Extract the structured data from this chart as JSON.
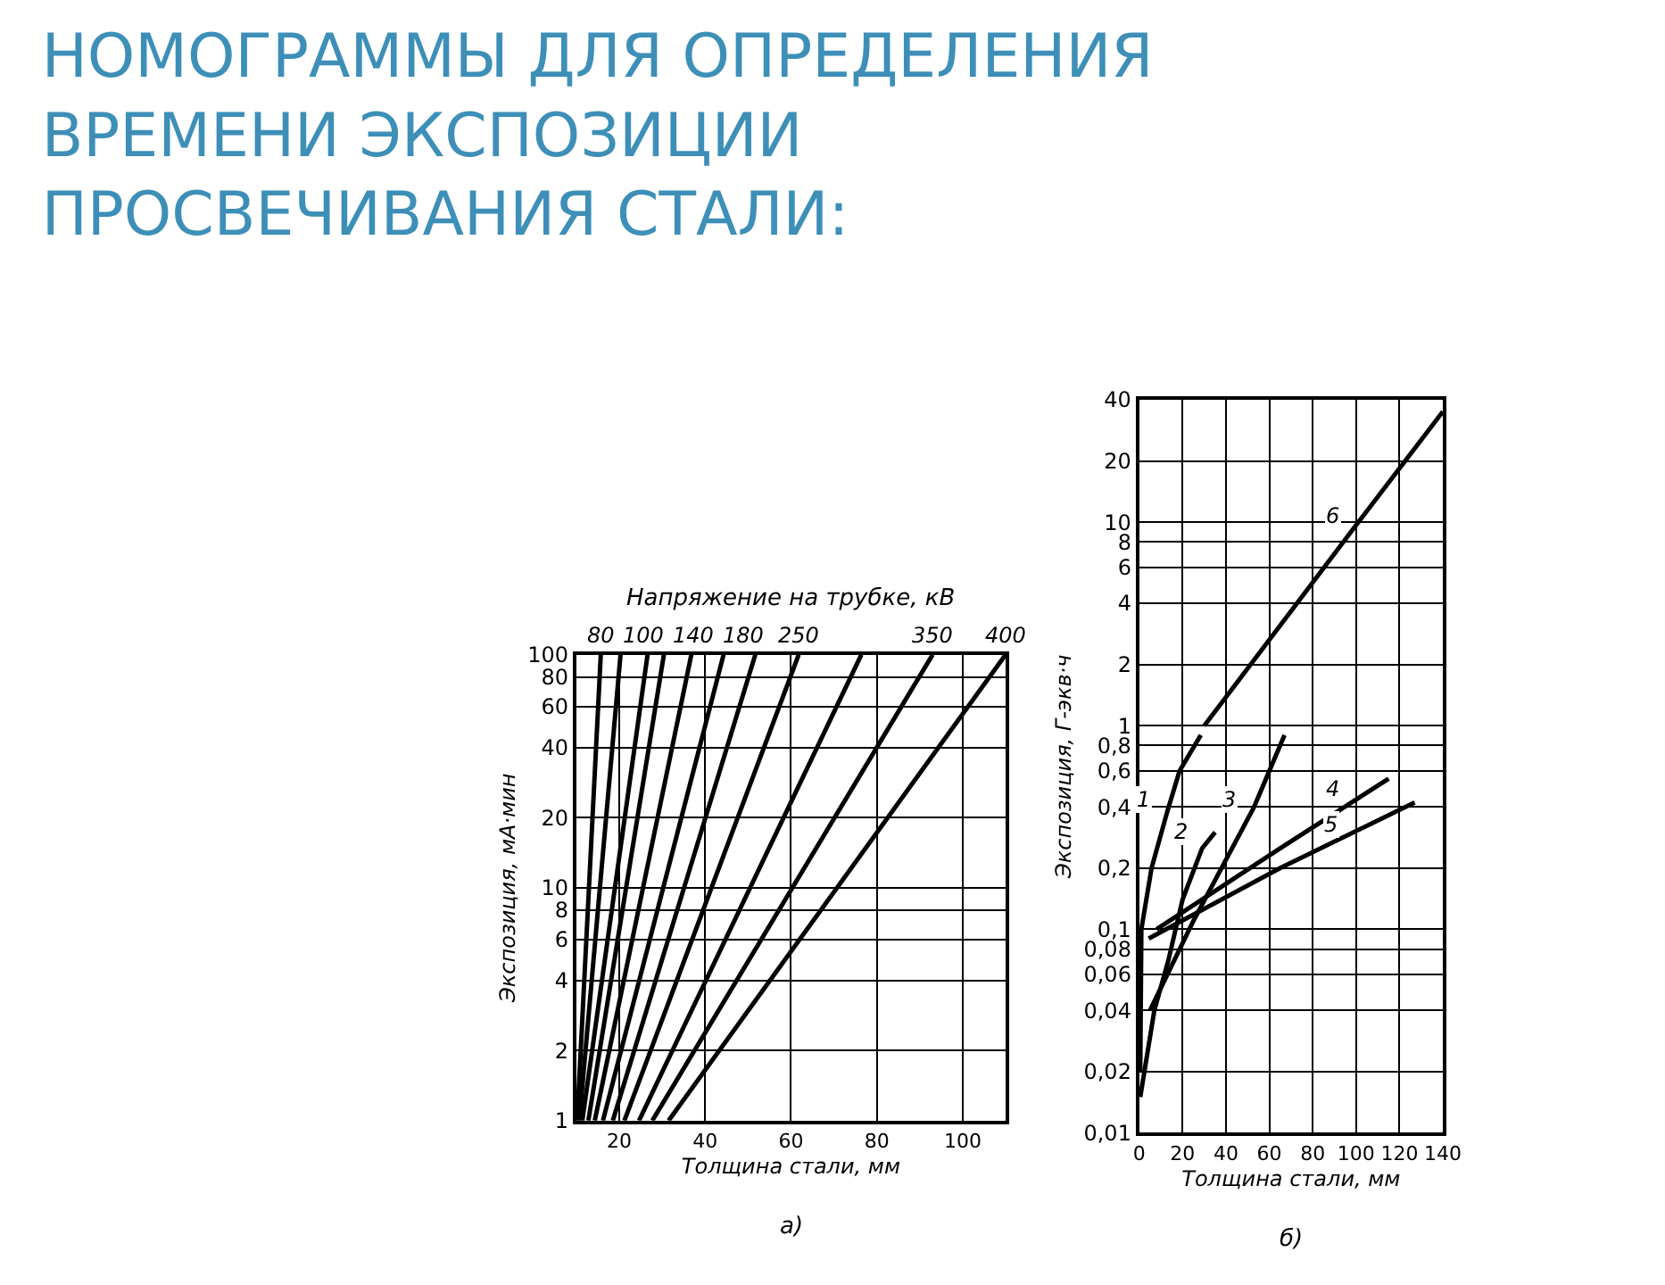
{
  "chart_data": [
    {
      "type": "line",
      "title": "НОМОГРАММЫ ДЛЯ ОПРЕДЕЛЕНИЯ ВРЕМЕНИ ЭКСПОЗИЦИИ ПРОСВЕЧИВАНИЯ СТАЛИ:",
      "subtitle": "Напряжение на трубке, кВ",
      "xlabel": "Толщина стали, мм",
      "ylabel": "Экспозиция, мА·мин",
      "log": "y",
      "grid": true,
      "marker": "none",
      "line_style": "solid",
      "xlim": [
        10,
        110
      ],
      "xticks": [
        20,
        40,
        60,
        80,
        100
      ],
      "ylim": [
        1,
        100
      ],
      "yticks": [
        1,
        2,
        4,
        6,
        8,
        10,
        20,
        40,
        60,
        80,
        100
      ],
      "series": [
        {
          "color": "#000000",
          "x": [
            10.2,
            15.7
          ],
          "values": [
            1,
            100
          ]
        },
        {
          "color": "#000000",
          "x": [
            10.7,
            20.3
          ],
          "values": [
            1,
            100
          ]
        },
        {
          "color": "#000000",
          "x": [
            11.4,
            26.6
          ],
          "values": [
            1,
            100
          ]
        },
        {
          "color": "#000000",
          "x": [
            12.8,
            30.4
          ],
          "values": [
            1,
            100
          ]
        },
        {
          "color": "#000000",
          "x": [
            14.3,
            36.8
          ],
          "values": [
            1,
            100
          ]
        },
        {
          "color": "#000000",
          "x": [
            16.2,
            44.3
          ],
          "values": [
            1,
            100
          ]
        },
        {
          "color": "#000000",
          "x": [
            18.5,
            51.7
          ],
          "values": [
            1,
            100
          ]
        },
        {
          "color": "#000000",
          "x": [
            21.2,
            61.8
          ],
          "values": [
            1,
            100
          ]
        },
        {
          "color": "#000000",
          "x": [
            24.6,
            76.4
          ],
          "values": [
            1,
            100
          ]
        },
        {
          "color": "#000000",
          "x": [
            27.7,
            93
          ],
          "values": [
            1,
            100
          ]
        },
        {
          "color": "#000000",
          "x": [
            31.5,
            110
          ],
          "values": [
            1,
            100
          ]
        }
      ],
      "annotations": [
        {
          "text": "80",
          "x": 15.7,
          "y": 100
        },
        {
          "text": "100",
          "x": 20.3,
          "y": 100
        },
        {
          "text": "140",
          "x": 30.4,
          "y": 100
        },
        {
          "text": "180",
          "x": 44.3,
          "y": 100
        },
        {
          "text": "250",
          "x": 61.8,
          "y": 100
        },
        {
          "text": "350",
          "x": 93,
          "y": 100
        },
        {
          "text": "400",
          "x": 110,
          "y": 100
        },
        "а)"
      ]
    },
    {
      "type": "line",
      "xlabel": "Толщина стали, мм",
      "ylabel": "Экспозиция, Г-экв·ч",
      "log": "y",
      "grid": true,
      "marker": "none",
      "line_style": "solid",
      "xlim": [
        0,
        140
      ],
      "xticks": [
        0,
        20,
        40,
        60,
        80,
        100,
        120,
        140
      ],
      "ylim": [
        0.01,
        40
      ],
      "yticks": [
        {
          "value": 0.01,
          "label": "0,01"
        },
        {
          "value": 0.02,
          "label": "0,02"
        },
        {
          "value": 0.04,
          "label": "0,04"
        },
        {
          "value": 0.06,
          "label": "0,06"
        },
        {
          "value": 0.08,
          "label": "0,08"
        },
        {
          "value": 0.1,
          "label": "0,1"
        },
        {
          "value": 0.2,
          "label": "0,2"
        },
        {
          "value": 0.4,
          "label": "0,4"
        },
        {
          "value": 0.6,
          "label": "0,6"
        },
        {
          "value": 0.8,
          "label": "0,8"
        },
        1,
        2,
        4,
        6,
        8,
        10,
        20,
        40
      ],
      "series": [
        {
          "color": "#000000",
          "x": [
            0.5,
            1,
            5.7,
            13,
            18.6,
            28.4
          ],
          "values": [
            0.02,
            0.1,
            0.2,
            0.38,
            0.6,
            0.9
          ]
        },
        {
          "color": "#000000",
          "x": [
            0.5,
            7,
            13.4,
            20,
            29,
            35
          ],
          "values": [
            0.015,
            0.04,
            0.07,
            0.14,
            0.25,
            0.3
          ]
        },
        {
          "color": "#000000",
          "x": [
            5,
            25,
            53,
            67
          ],
          "values": [
            0.04,
            0.11,
            0.4,
            0.9
          ]
        },
        {
          "color": "#000000",
          "x": [
            8,
            65,
            115
          ],
          "values": [
            0.1,
            0.25,
            0.55
          ]
        },
        {
          "color": "#000000",
          "x": [
            4.4,
            65,
            127
          ],
          "values": [
            0.09,
            0.2,
            0.42
          ]
        },
        {
          "color": "#000000",
          "x": [
            30,
            101,
            140
          ],
          "values": [
            1,
            10,
            35
          ]
        }
      ],
      "annotations": [
        {
          "text": "1",
          "x": 14,
          "y": 0.4
        },
        {
          "text": "2",
          "x": 31,
          "y": 0.28
        },
        {
          "text": "3",
          "x": 53,
          "y": 0.4
        },
        {
          "text": "4",
          "x": 101,
          "y": 0.45
        },
        {
          "text": "5",
          "x": 100,
          "y": 0.3
        },
        {
          "text": "6",
          "x": 101,
          "y": 10
        },
        "б)"
      ]
    }
  ]
}
